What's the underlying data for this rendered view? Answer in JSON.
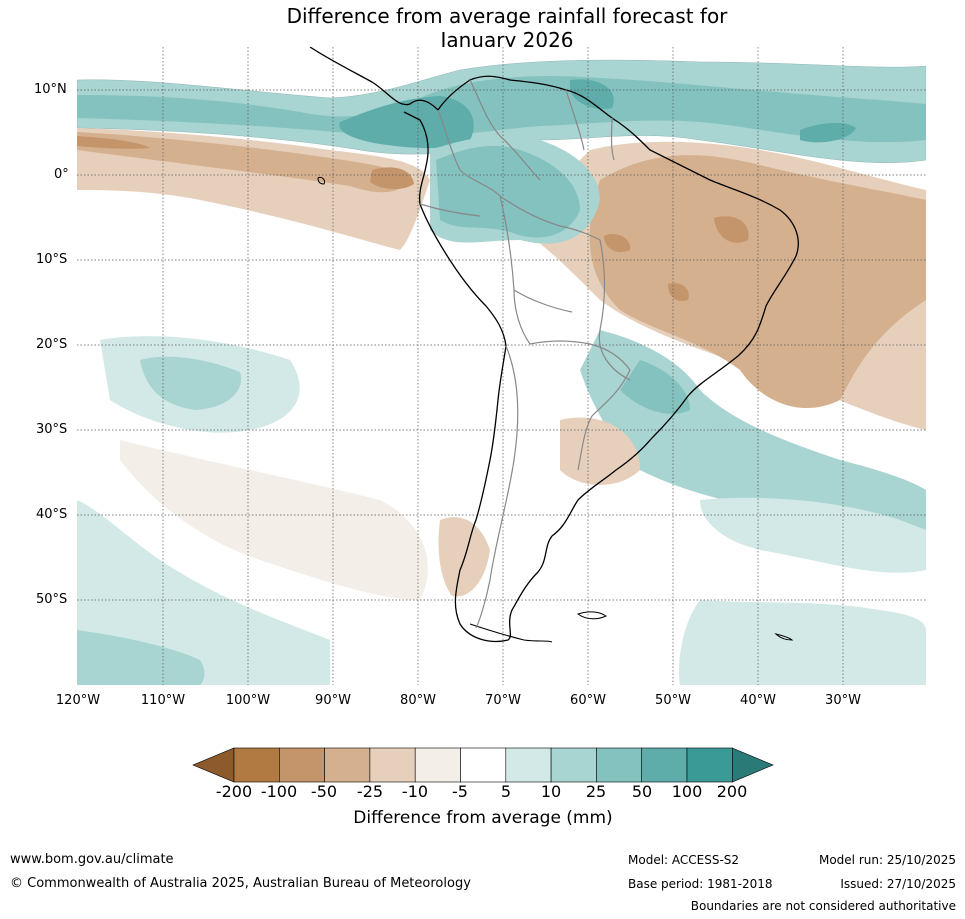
{
  "title": {
    "line1": "Difference from average rainfall forecast for",
    "line2": "January 2026"
  },
  "map": {
    "latitude_labels": [
      "10°N",
      "0°",
      "10°S",
      "20°S",
      "30°S",
      "40°S",
      "50°S"
    ],
    "longitude_labels": [
      "120°W",
      "110°W",
      "100°W",
      "90°W",
      "80°W",
      "70°W",
      "60°W",
      "50°W",
      "40°W",
      "30°W"
    ],
    "colors": {
      "grid": "#555555",
      "coast": "#000000",
      "border": "#888888"
    }
  },
  "colorbar": {
    "title": "Difference from average (mm)",
    "ticks": [
      "-200",
      "-100",
      "-50",
      "-25",
      "-10",
      "-5",
      "5",
      "10",
      "25",
      "50",
      "100",
      "200"
    ],
    "colors": [
      "#8c5a2b",
      "#b07a42",
      "#c4956a",
      "#d5b08f",
      "#e6d0bc",
      "#f3eee8",
      "#ffffff",
      "#d3e9e7",
      "#a8d4d1",
      "#84c2bf",
      "#5eadaa",
      "#3a9a96",
      "#2a7a77"
    ]
  },
  "footer": {
    "website": "www.bom.gov.au/climate",
    "copyright": "© Commonwealth of Australia 2025, Australian Bureau of Meteorology",
    "model": "Model: ACCESS-S2",
    "base_period": "Base period: 1981-2018",
    "model_run": "Model run: 25/10/2025",
    "issued": "Issued: 27/10/2025",
    "disclaimer": "Boundaries are not considered authoritative"
  }
}
